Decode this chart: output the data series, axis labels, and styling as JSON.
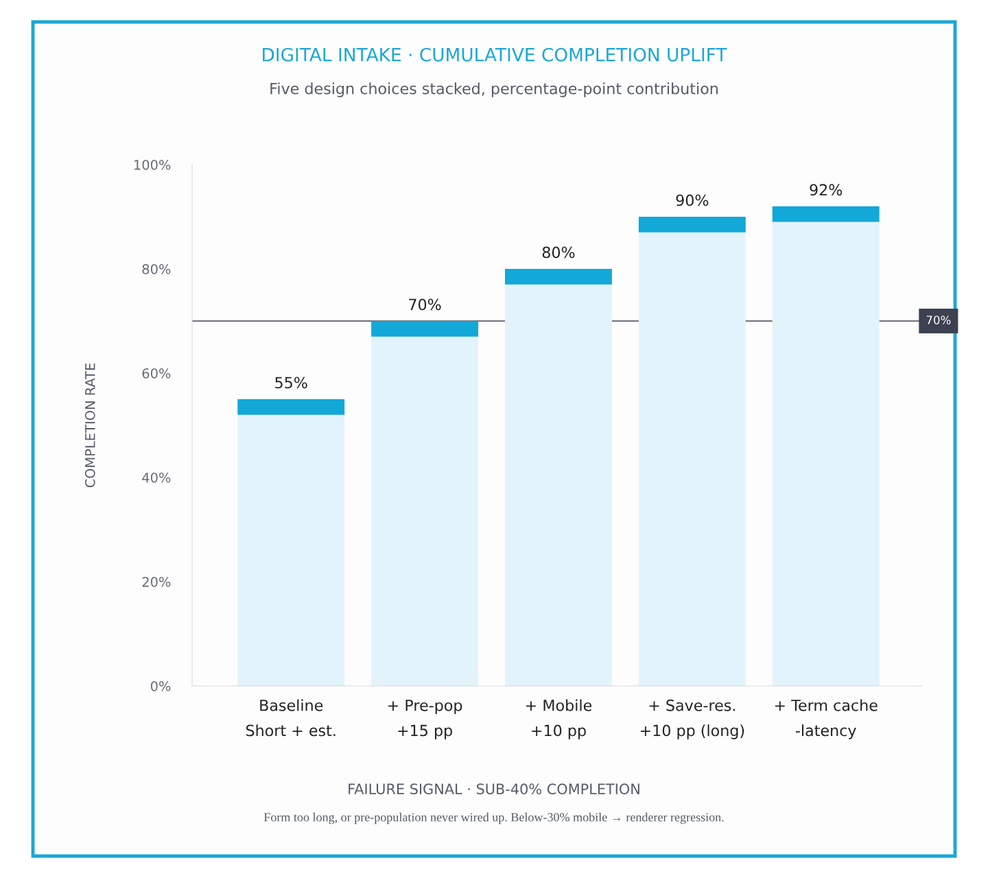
{
  "chart_data": {
    "type": "bar",
    "title": "DIGITAL INTAKE · CUMULATIVE COMPLETION UPLIFT",
    "subtitle": "Five design choices stacked, percentage-point contribution",
    "ylabel": "COMPLETION RATE",
    "categories": [
      "Baseline\nShort + est.",
      "+ Pre-pop\n+15 pp",
      "+ Mobile\n+10 pp",
      "+ Save-res.\n+10 pp (long)",
      "+ Term cache\n-latency"
    ],
    "stacked": true,
    "series": [
      {
        "color": "#e2f3fb",
        "values": [
          52,
          67,
          77,
          87,
          89
        ]
      },
      {
        "color": "#12a8d8",
        "values": [
          3,
          3,
          3,
          3,
          3
        ]
      }
    ],
    "totals": [
      "55%",
      "70%",
      "80%",
      "90%",
      "92%"
    ],
    "ylim": [
      0,
      100
    ],
    "yticks": [
      {
        "value": 0,
        "label": "0%"
      },
      {
        "value": 20,
        "label": "20%"
      },
      {
        "value": 40,
        "label": "40%"
      },
      {
        "value": 60,
        "label": "60%"
      },
      {
        "value": 80,
        "label": "80%"
      },
      {
        "value": 100,
        "label": "100%"
      }
    ],
    "ref_lines": [
      {
        "axis": "y",
        "value": 70,
        "label": "70%",
        "color": "#3d4250"
      }
    ],
    "grid": false,
    "annotations": [
      "FAILURE SIGNAL · SUB-40% COMPLETION",
      "Form too long, or pre-population never wired up. Below-30% mobile → renderer regression."
    ]
  }
}
